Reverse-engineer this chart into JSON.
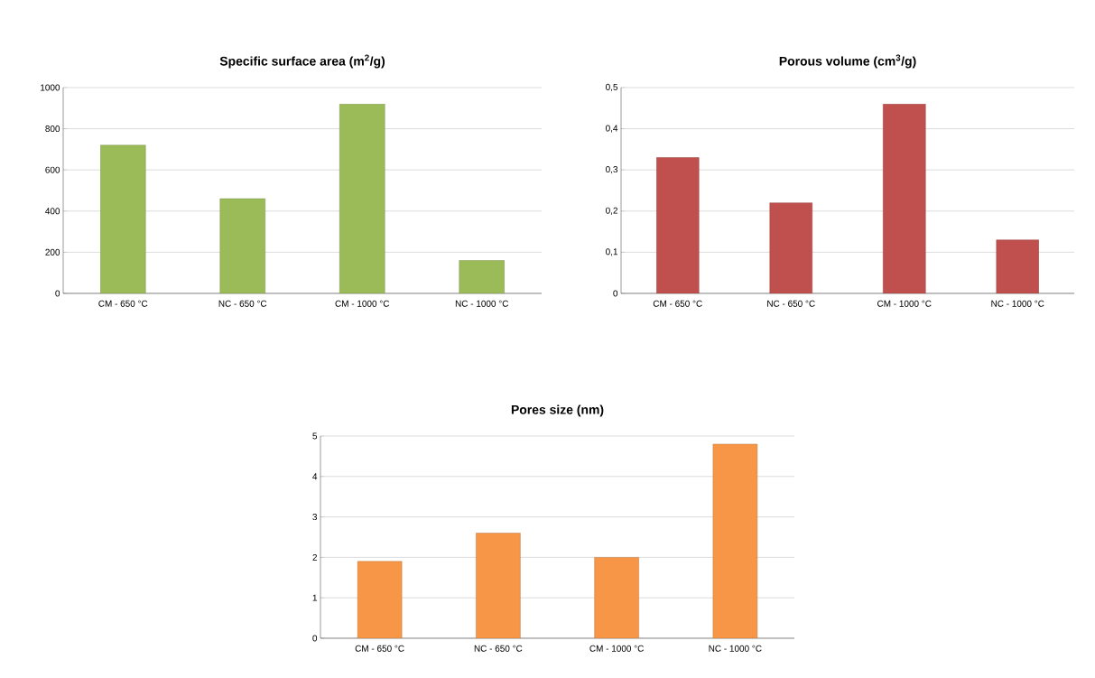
{
  "chart_data": [
    {
      "type": "bar",
      "title": "**Specific surface area (m$^{2}$/g)**",
      "categories": [
        "CM - 650 °C",
        "NC - 650 °C",
        "CM - 1000 °C",
        "NC - 1000 °C"
      ],
      "values": [
        720,
        460,
        920,
        160
      ],
      "color": "#9bbb59",
      "ylim": [
        0,
        1000
      ],
      "yticks": [
        0,
        200,
        400,
        600,
        800,
        1000
      ],
      "grid": "y"
    },
    {
      "type": "bar",
      "title": "**Porous volume (cm$^{3}$/g)**",
      "categories": [
        "CM - 650 °C",
        "NC - 650 °C",
        "CM - 1000 °C",
        "NC - 1000 °C"
      ],
      "values": [
        0.33,
        0.22,
        0.46,
        0.13
      ],
      "color": "#c0504d",
      "ylim": [
        0,
        0.5
      ],
      "yticks": [
        0,
        {
          "value": 0.1,
          "label": "0,1"
        },
        {
          "value": 0.2,
          "label": "0,2"
        },
        {
          "value": 0.3,
          "label": "0,3"
        },
        {
          "value": 0.4,
          "label": "0,4"
        },
        {
          "value": 0.5,
          "label": "0,5"
        }
      ],
      "grid": "y"
    },
    {
      "type": "bar",
      "title": "**Pores size (nm)**",
      "categories": [
        "CM - 650 °C",
        "NC - 650 °C",
        "CM - 1000 °C",
        "NC - 1000 °C"
      ],
      "values": [
        1.9,
        2.6,
        2.0,
        4.8
      ],
      "color": "#f79646",
      "ylim": [
        0,
        5
      ],
      "yticks": [
        0,
        1,
        2,
        3,
        4,
        5
      ],
      "grid": "y"
    }
  ]
}
